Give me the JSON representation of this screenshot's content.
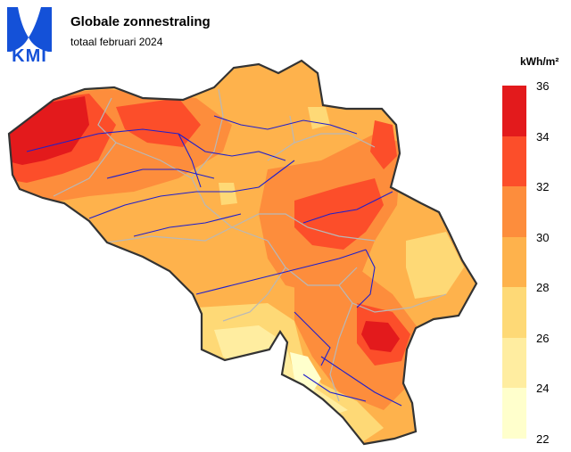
{
  "header": {
    "logo_text": "KMI",
    "title": "Globale zonnestraling",
    "subtitle": "totaal februari 2024"
  },
  "legend": {
    "unit": "kWh/m²",
    "ticks": [
      "36",
      "34",
      "32",
      "30",
      "28",
      "26",
      "24",
      "22"
    ],
    "classes": [
      {
        "range": [
          34,
          36
        ],
        "color": "#e31a1c"
      },
      {
        "range": [
          32,
          34
        ],
        "color": "#fc4e2a"
      },
      {
        "range": [
          30,
          32
        ],
        "color": "#fd8d3c"
      },
      {
        "range": [
          28,
          30
        ],
        "color": "#feb24c"
      },
      {
        "range": [
          26,
          28
        ],
        "color": "#fed976"
      },
      {
        "range": [
          24,
          26
        ],
        "color": "#ffeda0"
      },
      {
        "range": [
          22,
          24
        ],
        "color": "#ffffcc"
      }
    ]
  },
  "colors": {
    "border": "#333333",
    "rivers": "#1f1fcc",
    "provinces": "#b8b8b8",
    "brand": "#1451d8"
  }
}
